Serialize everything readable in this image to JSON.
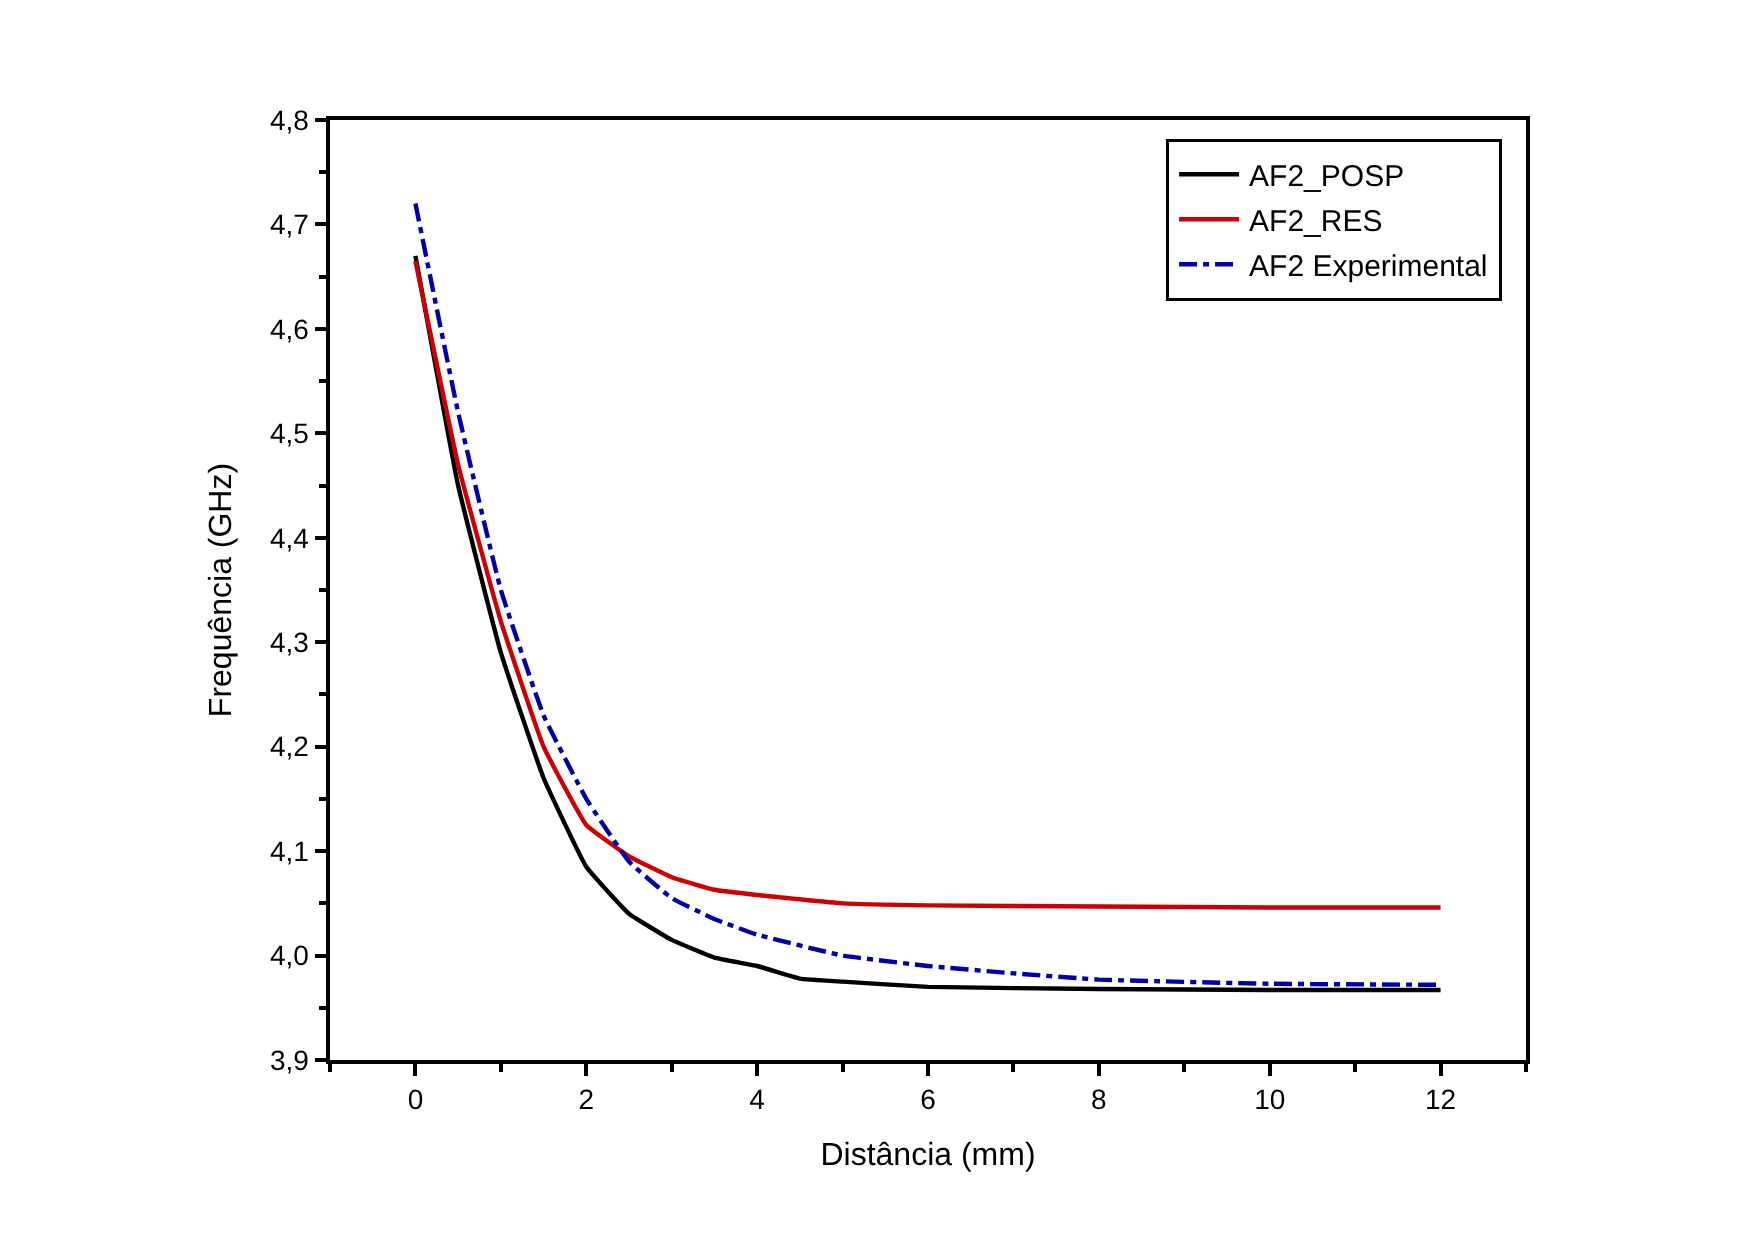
{
  "chart_data": {
    "type": "line",
    "xlabel": "Distância (mm)",
    "ylabel": "Frequência (GHz)",
    "xlim": [
      -1,
      13
    ],
    "xticks": [
      0,
      2,
      4,
      6,
      8,
      10,
      12
    ],
    "ylim": [
      3.9,
      4.8
    ],
    "yticks": [
      {
        "value": 3.9,
        "label": "3,9"
      },
      {
        "value": 4.0,
        "label": "4,0"
      },
      {
        "value": 4.1,
        "label": "4,1"
      },
      {
        "value": 4.2,
        "label": "4,2"
      },
      {
        "value": 4.3,
        "label": "4,3"
      },
      {
        "value": 4.4,
        "label": "4,4"
      },
      {
        "value": 4.5,
        "label": "4,5"
      },
      {
        "value": 4.6,
        "label": "4,6"
      },
      {
        "value": 4.7,
        "label": "4,7"
      },
      {
        "value": 4.8,
        "label": "4,8"
      }
    ],
    "legend": "top right",
    "marker": "none",
    "series": [
      {
        "name": "AF2_POSP",
        "color": "#000000",
        "line_style": "solid",
        "x": [
          0,
          0.5,
          1,
          1.5,
          2,
          2.5,
          3,
          3.5,
          4,
          4.5,
          5,
          6,
          8,
          10,
          12
        ],
        "values": [
          4.67,
          4.45,
          4.29,
          4.17,
          4.085,
          4.04,
          4.015,
          3.998,
          3.99,
          3.978,
          3.975,
          3.97,
          3.968,
          3.967,
          3.967
        ]
      },
      {
        "name": "AF2_RES",
        "color": "#cc0000",
        "line_style": "solid",
        "x": [
          0,
          0.5,
          1,
          1.5,
          2,
          2.5,
          3,
          3.5,
          4,
          5,
          6,
          8,
          10,
          12
        ],
        "values": [
          4.665,
          4.47,
          4.32,
          4.2,
          4.125,
          4.095,
          4.075,
          4.063,
          4.058,
          4.05,
          4.048,
          4.047,
          4.046,
          4.046
        ]
      },
      {
        "name": "AF2 Experimental",
        "color": "#0000aa",
        "line_style": "dashdot",
        "x": [
          0,
          0.5,
          1,
          1.5,
          2,
          2.5,
          3,
          3.5,
          4,
          5,
          6,
          7,
          8,
          10,
          12
        ],
        "values": [
          4.72,
          4.52,
          4.35,
          4.23,
          4.15,
          4.09,
          4.055,
          4.035,
          4.02,
          4.0,
          3.99,
          3.983,
          3.977,
          3.973,
          3.972
        ]
      }
    ]
  }
}
